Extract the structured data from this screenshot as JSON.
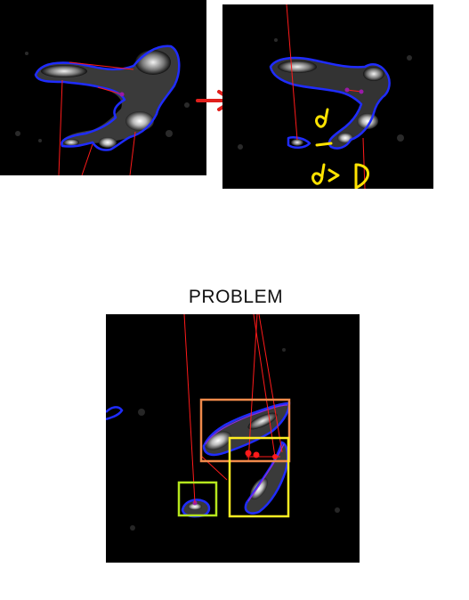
{
  "caption": {
    "problem": "PROBLEM"
  },
  "annotations": {
    "before_after_arrow": "arrow-right",
    "handwritten_d": "d",
    "handwritten_condition": "d > D"
  },
  "colors": {
    "contour_blue": "#1f2cff",
    "contour_purple": "#8a2be2",
    "red_line": "#ff1a1a",
    "arrow_red": "#e0201c",
    "handwriting_yellow": "#ffe300",
    "box_orange": "#f08a4b",
    "box_yellow": "#ffee22",
    "box_green": "#b5e61d"
  }
}
